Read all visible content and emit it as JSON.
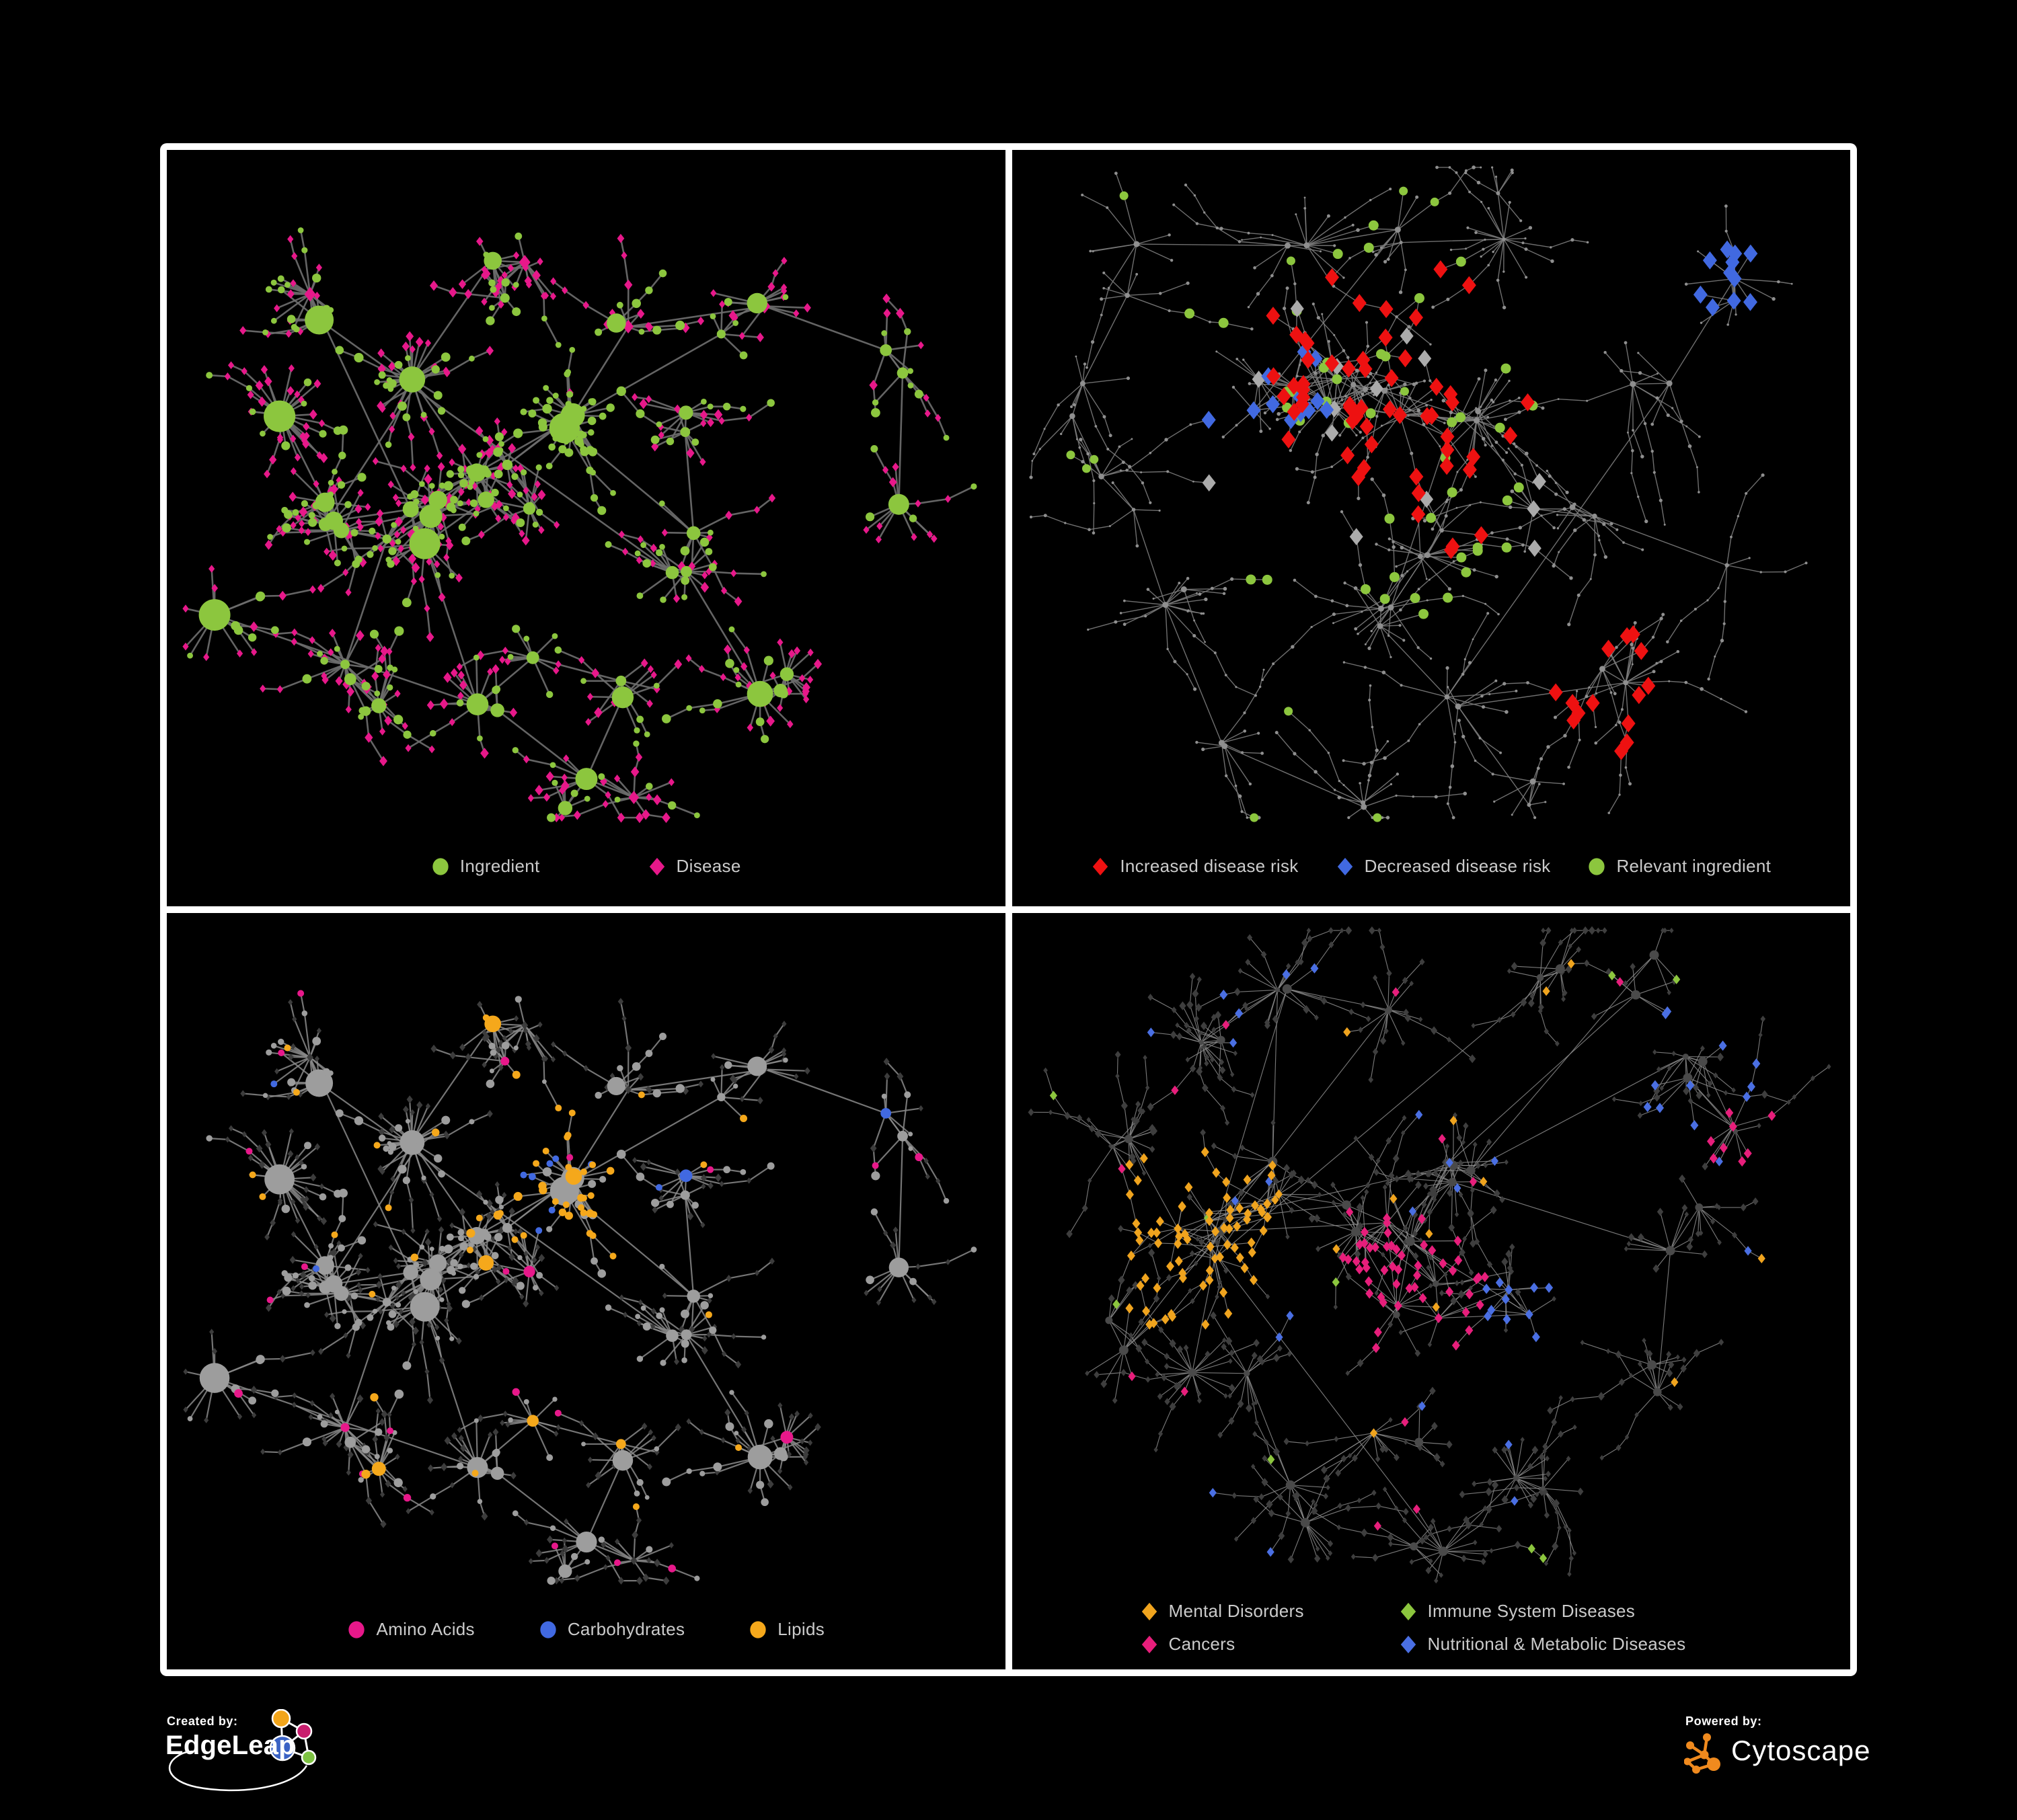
{
  "page": {
    "background": "#000000",
    "frame_color": "#ffffff",
    "legend_text_color": "#CBCBCB"
  },
  "panels": [
    {
      "key": "ingredient-disease",
      "legend": {
        "gap": 160,
        "items": [
          {
            "shape": "circle",
            "color": "#8CC63E",
            "label": "Ingredient"
          },
          {
            "shape": "diamond",
            "color": "#E7188A",
            "label": "Disease"
          }
        ]
      },
      "net": {
        "layout": "A",
        "styleSeed": 11,
        "edge": {
          "color": "#6C6C6C",
          "width": 2.6,
          "opacity": 0.92
        },
        "rules": [
          {
            "kind": "i",
            "p": 1,
            "shape": "circle",
            "color": "#8CC63E",
            "scale": 1.18,
            "min": 4.4
          },
          {
            "kind": "d",
            "p": 1,
            "shape": "diamond",
            "color": "#E7188A",
            "scale": 1.05,
            "min": 4.6,
            "cap": 8.5
          }
        ]
      }
    },
    {
      "key": "disease-risk",
      "legend": {
        "gap": 55,
        "items": [
          {
            "shape": "diamond",
            "color": "#EE1111",
            "label": "Increased disease risk"
          },
          {
            "shape": "diamond",
            "color": "#4169E1",
            "label": "Decreased disease risk"
          },
          {
            "shape": "circle",
            "color": "#8CC63E",
            "label": "Relevant ingredient"
          }
        ]
      },
      "net": {
        "layout": "B",
        "styleSeed": 22,
        "edge": {
          "color": "#7B7B7B",
          "width": 1.4,
          "opacity": 0.9
        },
        "rules": [
          {
            "c": [
              0.46,
              0.35
            ],
            "r": 0.2,
            "p": 0.17,
            "shape": "diamond",
            "color": "#EE1111",
            "size": 10.5
          },
          {
            "c": [
              0.7,
              0.72
            ],
            "r": 0.09,
            "p": 0.3,
            "shape": "diamond",
            "color": "#EE1111",
            "size": 10.5
          },
          {
            "c": [
              0.86,
              0.175
            ],
            "r": 0.05,
            "p": 0.75,
            "shape": "diamond",
            "color": "#4169E1",
            "size": 10.5
          },
          {
            "c": [
              0.285,
              0.33
            ],
            "r": 0.095,
            "p": 0.22,
            "shape": "diamond",
            "color": "#4169E1",
            "size": 10.5
          },
          {
            "c": [
              0.45,
              0.4
            ],
            "r": 0.24,
            "p": 0.05,
            "shape": "diamond",
            "color": "#ABABAB",
            "size": 10
          },
          {
            "c": [
              0.42,
              0.36
            ],
            "r": 0.27,
            "p": 0.13,
            "shape": "circle",
            "color": "#8CC63E",
            "size": 7.5
          },
          {
            "p": 0.012,
            "shape": "circle",
            "color": "#8CC63E",
            "size": 6.5
          },
          {
            "p": 1,
            "shape": "circle",
            "color": "#8F8F8F",
            "scale": 0.46,
            "cap": 4.5
          }
        ]
      }
    },
    {
      "key": "compound-classes",
      "legend": {
        "gap": 95,
        "items": [
          {
            "shape": "circle",
            "color": "#E7188A",
            "label": "Amino Acids"
          },
          {
            "shape": "circle",
            "color": "#4169E1",
            "label": "Carbohydrates"
          },
          {
            "shape": "circle",
            "color": "#F5A81B",
            "label": "Lipids"
          }
        ]
      },
      "net": {
        "layout": "A",
        "styleSeed": 33,
        "edge": {
          "color": "#8A8A8A",
          "width": 2.2,
          "opacity": 0.85
        },
        "rules": [
          {
            "kind": "i",
            "c": [
              0.475,
              0.345
            ],
            "r": 0.11,
            "p": 0.52,
            "shape": "circle",
            "color": "#F5A81B",
            "scale": 1.1,
            "min": 5
          },
          {
            "kind": "i",
            "c": [
              0.475,
              0.345
            ],
            "r": 0.11,
            "p": 0.42,
            "shape": "circle",
            "color": "#4169E1",
            "scale": 1.05,
            "min": 5
          },
          {
            "kind": "i",
            "c": [
              0.52,
              0.47
            ],
            "r": 0.06,
            "p": 0.45,
            "shape": "circle",
            "color": "#F5A81B",
            "scale": 1.1,
            "min": 5
          },
          {
            "kind": "i",
            "p": 0.1,
            "shape": "circle",
            "color": "#F5A81B",
            "scale": 1.1,
            "min": 5
          },
          {
            "kind": "i",
            "p": 0.075,
            "shape": "circle",
            "color": "#E7188A",
            "scale": 1.1,
            "min": 5
          },
          {
            "kind": "i",
            "p": 0.03,
            "shape": "circle",
            "color": "#4169E1",
            "scale": 1.05,
            "min": 5
          },
          {
            "kind": "i",
            "p": 1,
            "shape": "circle",
            "color": "#9D9D9D",
            "scale": 1.12
          },
          {
            "kind": "d",
            "p": 1,
            "shape": "diamond",
            "color": "#3C3C3C",
            "scale": 0.82,
            "min": 3.6,
            "cap": 5
          }
        ]
      }
    },
    {
      "key": "disease-categories",
      "legend": {
        "gap": 0,
        "columns": 2,
        "items": [
          {
            "shape": "diamond",
            "color": "#F0A41E",
            "label": "Mental Disorders"
          },
          {
            "shape": "diamond",
            "color": "#8CC63E",
            "label": "Immune System Diseases"
          },
          {
            "shape": "diamond",
            "color": "#E71E7B",
            "label": "Cancers"
          },
          {
            "shape": "diamond",
            "color": "#4A6FE3",
            "label": "Nutritional & Metabolic Diseases"
          }
        ]
      },
      "net": {
        "layout": "C",
        "styleSeed": 44,
        "edge": {
          "color": "#8C8C8C",
          "width": 1.15,
          "opacity": 0.85
        },
        "rules": [
          {
            "c": [
              0.21,
              0.44
            ],
            "r": 0.13,
            "p": 0.72,
            "shape": "diamond",
            "color": "#F0A41E",
            "size": 6
          },
          {
            "c": [
              0.305,
              0.35
            ],
            "r": 0.05,
            "p": 0.4,
            "shape": "diamond",
            "color": "#F0A41E",
            "size": 6
          },
          {
            "c": [
              0.47,
              0.5
            ],
            "r": 0.1,
            "p": 0.5,
            "shape": "diamond",
            "color": "#E71E7B",
            "size": 6
          },
          {
            "c": [
              0.88,
              0.295
            ],
            "r": 0.055,
            "p": 0.55,
            "shape": "diamond",
            "color": "#E71E7B",
            "size": 6
          },
          {
            "c": [
              0.6,
              0.54
            ],
            "r": 0.065,
            "p": 0.65,
            "shape": "diamond",
            "color": "#4A6FE3",
            "size": 6
          },
          {
            "c": [
              0.8,
              0.22
            ],
            "r": 0.1,
            "p": 0.35,
            "shape": "diamond",
            "color": "#4A6FE3",
            "size": 6
          },
          {
            "c": [
              0.33,
              0.12
            ],
            "r": 0.085,
            "p": 0.25,
            "shape": "diamond",
            "color": "#4A6FE3",
            "size": 6
          },
          {
            "p": 0.035,
            "shape": "diamond",
            "color": "#4A6FE3",
            "size": 5.6
          },
          {
            "p": 0.02,
            "shape": "diamond",
            "color": "#F0A41E",
            "size": 5.6
          },
          {
            "p": 0.022,
            "shape": "diamond",
            "color": "#E71E7B",
            "size": 5.6
          },
          {
            "p": 0.012,
            "shape": "diamond",
            "color": "#8CC63E",
            "size": 5.6
          },
          {
            "hub": true,
            "p": 1,
            "shape": "circle",
            "color": "#4A4A4A",
            "scale": 0.6,
            "cap": 7
          },
          {
            "p": 1,
            "shape": "diamond",
            "color": "#3E3E3E",
            "scale": 0.85,
            "min": 3.2,
            "cap": 5.2
          }
        ]
      }
    }
  ],
  "layouts": {
    "A": {
      "seed": 1337,
      "leaf": [
        5,
        12
      ],
      "leafDist": [
        14,
        56
      ],
      "chainProb": 0.3,
      "chainMax": 3,
      "iProb": 0.34,
      "hubIProb": 0.8,
      "mesh": 0.1,
      "meshDist": 140,
      "clusters": [
        [
          0.22,
          0.5,
          5,
          62
        ],
        [
          0.31,
          0.49,
          4,
          48
        ],
        [
          0.4,
          0.46,
          5,
          55
        ],
        [
          0.475,
          0.345,
          4,
          40,
          0.9
        ],
        [
          0.3,
          0.285,
          3,
          55
        ],
        [
          0.19,
          0.195,
          2,
          42
        ],
        [
          0.42,
          0.165,
          3,
          50
        ],
        [
          0.56,
          0.21,
          2,
          40
        ],
        [
          0.7,
          0.245,
          3,
          50
        ],
        [
          0.845,
          0.3,
          2,
          45
        ],
        [
          0.6,
          0.53,
          3,
          48
        ],
        [
          0.72,
          0.68,
          3,
          50
        ],
        [
          0.4,
          0.7,
          3,
          48
        ],
        [
          0.225,
          0.72,
          3,
          55
        ],
        [
          0.475,
          0.845,
          2,
          40
        ],
        [
          0.115,
          0.37,
          2,
          40
        ],
        [
          0.6,
          0.38,
          2,
          40
        ],
        [
          0.88,
          0.45,
          1,
          30
        ],
        [
          0.55,
          0.7,
          2,
          40
        ],
        [
          0.08,
          0.62,
          1,
          30
        ],
        [
          0.55,
          0.86,
          1,
          25
        ]
      ]
    },
    "B": {
      "seed": 4242,
      "leaf": [
        4,
        9
      ],
      "leafDist": [
        18,
        62
      ],
      "chainProb": 0.5,
      "chainMax": 5,
      "iProb": 0.3,
      "hubIProb": 0.8,
      "mesh": 0.12,
      "meshDist": 150,
      "clusters": [
        [
          0.44,
          0.34,
          5,
          55
        ],
        [
          0.52,
          0.37,
          4,
          50
        ],
        [
          0.36,
          0.31,
          4,
          50
        ],
        [
          0.3,
          0.33,
          3,
          45
        ],
        [
          0.45,
          0.12,
          2,
          45
        ],
        [
          0.33,
          0.1,
          2,
          40
        ],
        [
          0.57,
          0.085,
          2,
          40
        ],
        [
          0.17,
          0.16,
          2,
          45
        ],
        [
          0.1,
          0.33,
          2,
          40
        ],
        [
          0.115,
          0.46,
          2,
          40
        ],
        [
          0.17,
          0.62,
          2,
          45
        ],
        [
          0.26,
          0.76,
          2,
          45
        ],
        [
          0.42,
          0.62,
          3,
          45
        ],
        [
          0.4,
          0.85,
          2,
          40
        ],
        [
          0.55,
          0.74,
          2,
          45
        ],
        [
          0.66,
          0.45,
          3,
          50
        ],
        [
          0.76,
          0.31,
          2,
          45
        ],
        [
          0.86,
          0.185,
          2,
          40
        ],
        [
          0.7,
          0.7,
          2,
          45
        ],
        [
          0.62,
          0.86,
          2,
          40
        ],
        [
          0.88,
          0.55,
          1,
          35
        ],
        [
          0.52,
          0.53,
          3,
          45
        ]
      ]
    },
    "C": {
      "seed": 9001,
      "leaf": [
        4,
        10
      ],
      "leafDist": [
        16,
        58
      ],
      "chainProb": 0.42,
      "chainMax": 4,
      "iProb": 0.3,
      "hubIProb": 0.8,
      "mesh": 0.2,
      "meshDist": 150,
      "clusters": [
        [
          0.21,
          0.43,
          5,
          65
        ],
        [
          0.3,
          0.37,
          3,
          50
        ],
        [
          0.44,
          0.4,
          5,
          55
        ],
        [
          0.52,
          0.36,
          4,
          50
        ],
        [
          0.47,
          0.51,
          4,
          50
        ],
        [
          0.6,
          0.53,
          3,
          45
        ],
        [
          0.35,
          0.12,
          2,
          45
        ],
        [
          0.48,
          0.095,
          2,
          40
        ],
        [
          0.62,
          0.11,
          2,
          42
        ],
        [
          0.74,
          0.085,
          2,
          40
        ],
        [
          0.25,
          0.18,
          2,
          42
        ],
        [
          0.13,
          0.3,
          2,
          42
        ],
        [
          0.8,
          0.23,
          3,
          50
        ],
        [
          0.88,
          0.31,
          2,
          40
        ],
        [
          0.79,
          0.42,
          2,
          40
        ],
        [
          0.25,
          0.64,
          2,
          45
        ],
        [
          0.34,
          0.77,
          2,
          45
        ],
        [
          0.5,
          0.86,
          2,
          42
        ],
        [
          0.63,
          0.73,
          2,
          45
        ],
        [
          0.77,
          0.61,
          2,
          42
        ],
        [
          0.12,
          0.55,
          2,
          40
        ],
        [
          0.46,
          0.68,
          2,
          40
        ]
      ]
    }
  },
  "footer": {
    "created_by": {
      "label": "Created by:",
      "brand": "EdgeLeap",
      "logo_colors": [
        "#F2A51A",
        "#C81E6E",
        "#3A62C4",
        "#7DC242"
      ]
    },
    "powered_by": {
      "label": "Powered by:",
      "brand": "Cytoscape",
      "icon_color": "#F08A1E"
    }
  }
}
